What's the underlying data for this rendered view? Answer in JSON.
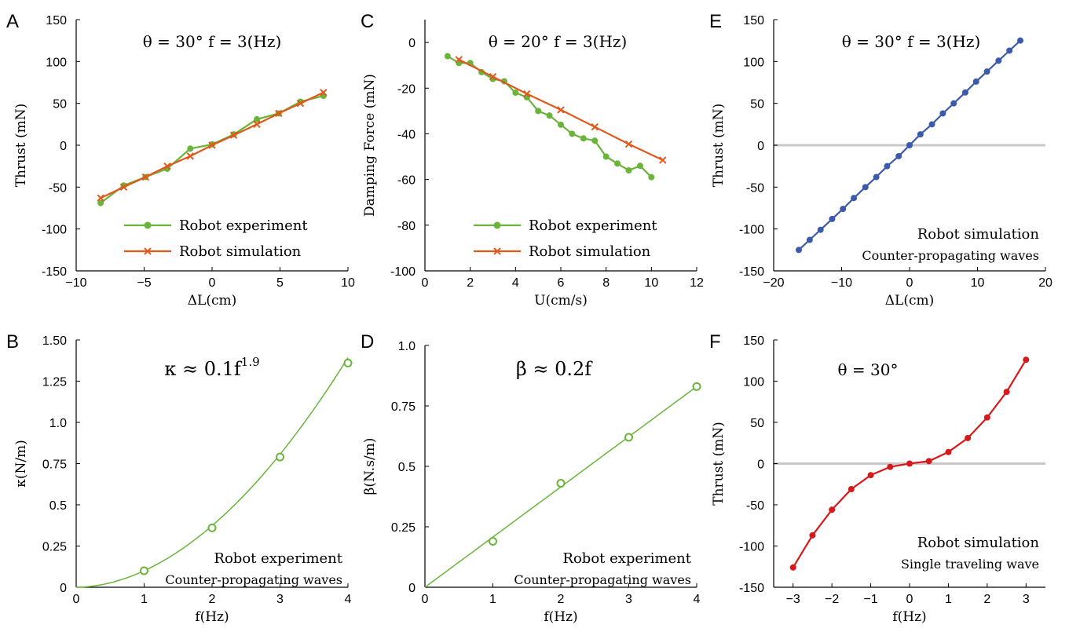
{
  "chart_data": [
    {
      "id": "A",
      "type": "line",
      "panel_label": "A",
      "annotation": "θ = 30°  f = 3(Hz)",
      "xlabel": "ΔL(cm)",
      "ylabel": "Thrust (mN)",
      "xlim": [
        -10,
        10
      ],
      "ylim": [
        -150,
        150
      ],
      "xticks": [
        -10,
        -5,
        0,
        5,
        10
      ],
      "yticks": [
        -150,
        -100,
        -50,
        0,
        50,
        100,
        150
      ],
      "xtick_labels": [
        "−10",
        "−5",
        "0",
        "5",
        "10"
      ],
      "ytick_labels": [
        "-150",
        "-100",
        "-50",
        "0",
        "50",
        "100",
        "150"
      ],
      "legend_placement": "bottom-right",
      "series": [
        {
          "name": "Robot experiment",
          "color": "#6ab43a",
          "marker": "dot",
          "x": [
            -8.2,
            -6.5,
            -4.9,
            -3.3,
            -1.6,
            0,
            1.6,
            3.3,
            4.9,
            6.5,
            8.2
          ],
          "y": [
            -69,
            -48,
            -38,
            -28,
            -4,
            1,
            13,
            31,
            38,
            52,
            59
          ]
        },
        {
          "name": "Robot simulation",
          "color": "#e0591c",
          "marker": "x",
          "x": [
            -8.2,
            -6.5,
            -4.9,
            -3.3,
            -1.6,
            0,
            1.6,
            3.3,
            4.9,
            6.5,
            8.2
          ],
          "y": [
            -63,
            -50,
            -38,
            -25,
            -13,
            0,
            12,
            25,
            38,
            50,
            63
          ]
        }
      ]
    },
    {
      "id": "B",
      "type": "line",
      "panel_label": "B",
      "annotation": "κ ≈ 0.1f^1.9",
      "xlabel": "f(Hz)",
      "ylabel": "κ(N/m)",
      "xlim": [
        0,
        4
      ],
      "ylim": [
        0,
        1.5
      ],
      "xticks": [
        0,
        1,
        2,
        3,
        4
      ],
      "yticks": [
        0,
        0.25,
        0.5,
        0.75,
        1.0,
        1.25,
        1.5
      ],
      "xtick_labels": [
        "0",
        "1",
        "2",
        "3",
        "4"
      ],
      "ytick_labels": [
        "0",
        "0.25",
        "0.5",
        "0.75",
        "1.0",
        "1.25",
        "1.50"
      ],
      "notes": [
        "Robot experiment",
        "Counter-propagating waves"
      ],
      "fit": {
        "color": "#6ab43a",
        "coef": 0.1,
        "power": 1.9,
        "x": [
          0,
          4
        ]
      },
      "series": [
        {
          "color": "#6ab43a",
          "marker": "circle",
          "x": [
            1,
            2,
            3,
            4
          ],
          "y": [
            0.1,
            0.36,
            0.79,
            1.36
          ]
        }
      ]
    },
    {
      "id": "C",
      "type": "line",
      "panel_label": "C",
      "annotation": "θ = 20°  f = 3(Hz)",
      "xlabel": "U(cm/s)",
      "ylabel": "Damping Force (mN)",
      "xlim": [
        0,
        12
      ],
      "ylim": [
        -100,
        10
      ],
      "xticks": [
        0,
        2,
        4,
        6,
        8,
        10,
        12
      ],
      "yticks": [
        -100,
        -80,
        -60,
        -40,
        -20,
        0
      ],
      "xtick_labels": [
        "0",
        "2",
        "4",
        "6",
        "8",
        "10",
        "12"
      ],
      "ytick_labels": [
        "-100",
        "-80",
        "-60",
        "-40",
        "-20",
        "0"
      ],
      "legend_placement": "bottom-right",
      "series": [
        {
          "name": "Robot experiment",
          "color": "#6ab43a",
          "marker": "dot",
          "x": [
            1,
            1.5,
            2,
            2.5,
            3,
            3.5,
            4,
            4.5,
            5,
            5.5,
            6,
            6.5,
            7,
            7.5,
            8,
            8.5,
            9,
            9.5,
            10
          ],
          "y": [
            -6,
            -9,
            -9,
            -13,
            -16,
            -17,
            -22,
            -24,
            -30,
            -32,
            -36,
            -40,
            -42,
            -43,
            -50,
            -53,
            -56,
            -54,
            -59
          ]
        },
        {
          "name": "Robot simulation",
          "color": "#e0591c",
          "marker": "x",
          "x": [
            1.5,
            3,
            4.5,
            6,
            7.5,
            9,
            10.5
          ],
          "y": [
            -7.5,
            -15,
            -22.5,
            -29.5,
            -37,
            -44.5,
            -51.5
          ]
        }
      ]
    },
    {
      "id": "D",
      "type": "line",
      "panel_label": "D",
      "annotation": "β ≈ 0.2f",
      "xlabel": "f(Hz)",
      "ylabel": "β(N.s/m)",
      "xlim": [
        0,
        4
      ],
      "ylim": [
        0,
        1.0
      ],
      "xticks": [
        0,
        1,
        2,
        3,
        4
      ],
      "yticks": [
        0,
        0.25,
        0.5,
        0.75,
        1.0
      ],
      "xtick_labels": [
        "0",
        "1",
        "2",
        "3",
        "4"
      ],
      "ytick_labels": [
        "0",
        "0.25",
        "0.5",
        "0.75",
        "1.0"
      ],
      "notes": [
        "Robot experiment",
        "Counter-propagating waves"
      ],
      "fit": {
        "color": "#6ab43a",
        "coef": 0.2075,
        "power": 1,
        "x": [
          0,
          4
        ]
      },
      "series": [
        {
          "color": "#6ab43a",
          "marker": "circle",
          "x": [
            1,
            2,
            3,
            4
          ],
          "y": [
            0.19,
            0.43,
            0.62,
            0.83
          ]
        }
      ]
    },
    {
      "id": "E",
      "type": "line",
      "panel_label": "E",
      "annotation": "θ = 30°  f = 3(Hz)",
      "xlabel": "ΔL(cm)",
      "ylabel": "Thrust (mN)",
      "xlim": [
        -20,
        20
      ],
      "ylim": [
        -150,
        150
      ],
      "xticks": [
        -20,
        -10,
        0,
        10,
        20
      ],
      "yticks": [
        -150,
        -100,
        -50,
        0,
        50,
        100,
        150
      ],
      "xtick_labels": [
        "−20",
        "−10",
        "0",
        "10",
        "20"
      ],
      "ytick_labels": [
        "-150",
        "-100",
        "-50",
        "0",
        "50",
        "100",
        "150"
      ],
      "zero_line": true,
      "notes": [
        "Robot simulation",
        "Counter-propagating waves"
      ],
      "series": [
        {
          "color": "#3c5aab",
          "marker": "dot",
          "x": [
            -16.3,
            -14.7,
            -13.1,
            -11.4,
            -9.8,
            -8.2,
            -6.5,
            -4.9,
            -3.3,
            -1.6,
            0,
            1.6,
            3.3,
            4.9,
            6.5,
            8.2,
            9.8,
            11.4,
            13.1,
            14.7,
            16.3
          ],
          "y": [
            -125,
            -113,
            -101,
            -88,
            -76,
            -63,
            -50,
            -38,
            -25,
            -13,
            0,
            13,
            25,
            38,
            50,
            63,
            76,
            88,
            101,
            113,
            125
          ]
        }
      ]
    },
    {
      "id": "F",
      "type": "line",
      "panel_label": "F",
      "annotation": "θ = 30°",
      "xlabel": "f(Hz)",
      "ylabel": "Thrust (mN)",
      "xlim": [
        -3.5,
        3.5
      ],
      "ylim": [
        -150,
        150
      ],
      "xticks": [
        -3,
        -2,
        -1,
        0,
        1,
        2,
        3
      ],
      "yticks": [
        -150,
        -100,
        -50,
        0,
        50,
        100,
        150
      ],
      "xtick_labels": [
        "−3",
        "−2",
        "−1",
        "0",
        "1",
        "2",
        "3"
      ],
      "ytick_labels": [
        "-150",
        "-100",
        "-50",
        "0",
        "50",
        "100",
        "150"
      ],
      "zero_line": true,
      "notes": [
        "Robot simulation",
        "Single traveling wave"
      ],
      "series": [
        {
          "color": "#d7191c",
          "marker": "dot",
          "x": [
            -3,
            -2.5,
            -2,
            -1.5,
            -1,
            -0.5,
            0,
            0.5,
            1,
            1.5,
            2,
            2.5,
            3
          ],
          "y": [
            -126,
            -87,
            -56,
            -31,
            -14,
            -4,
            0,
            3,
            14,
            31,
            56,
            87,
            126
          ]
        }
      ]
    }
  ]
}
